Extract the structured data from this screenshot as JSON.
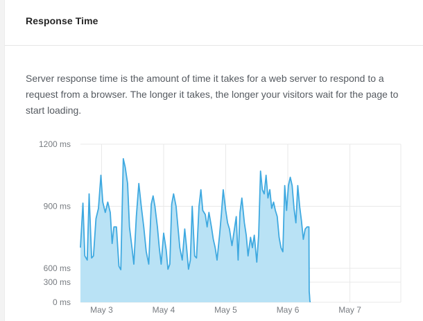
{
  "card": {
    "title": "Response Time",
    "description": "Server response time is the amount of time it takes for a web server to respond to a request from a browser. The longer it takes, the longer your visitors wait for the page to start loading."
  },
  "colors": {
    "line": "#3fa9e0",
    "fill": "#b9e2f5",
    "grid": "#e8e8e8"
  },
  "chart_data": {
    "type": "area",
    "title": "",
    "xlabel": "",
    "ylabel": "",
    "y_ticks": [
      {
        "label": "1200 ms",
        "value": 1200
      },
      {
        "label": "900 ms",
        "value": 900
      },
      {
        "label": "600 ms",
        "value": 600
      },
      {
        "label": "300 ms",
        "value": 300
      },
      {
        "label": "0 ms",
        "value": 0
      }
    ],
    "x_ticks": [
      {
        "label": "May 3",
        "day": 3
      },
      {
        "label": "May 4",
        "day": 4
      },
      {
        "label": "May 5",
        "day": 5
      },
      {
        "label": "May 6",
        "day": 6
      },
      {
        "label": "May 7",
        "day": 7
      }
    ],
    "xlim": [
      2.66,
      7.82
    ],
    "grid": true,
    "legend": "none",
    "series": [
      {
        "values": [
          [
            2.66,
            700
          ],
          [
            2.7,
            915
          ],
          [
            2.73,
            660
          ],
          [
            2.77,
            640
          ],
          [
            2.8,
            960
          ],
          [
            2.84,
            650
          ],
          [
            2.87,
            660
          ],
          [
            2.91,
            840
          ],
          [
            2.95,
            890
          ],
          [
            2.99,
            1050
          ],
          [
            3.02,
            920
          ],
          [
            3.06,
            870
          ],
          [
            3.1,
            920
          ],
          [
            3.14,
            870
          ],
          [
            3.17,
            720
          ],
          [
            3.2,
            800
          ],
          [
            3.24,
            800
          ],
          [
            3.28,
            610
          ],
          [
            3.31,
            570
          ],
          [
            3.35,
            1130
          ],
          [
            3.38,
            1090
          ],
          [
            3.42,
            1010
          ],
          [
            3.45,
            800
          ],
          [
            3.49,
            700
          ],
          [
            3.52,
            620
          ],
          [
            3.56,
            850
          ],
          [
            3.6,
            1010
          ],
          [
            3.64,
            900
          ],
          [
            3.68,
            800
          ],
          [
            3.72,
            680
          ],
          [
            3.76,
            620
          ],
          [
            3.8,
            910
          ],
          [
            3.83,
            950
          ],
          [
            3.86,
            900
          ],
          [
            3.9,
            800
          ],
          [
            3.93,
            700
          ],
          [
            3.96,
            620
          ],
          [
            4.0,
            770
          ],
          [
            4.04,
            690
          ],
          [
            4.07,
            580
          ],
          [
            4.1,
            620
          ],
          [
            4.13,
            910
          ],
          [
            4.16,
            960
          ],
          [
            4.2,
            900
          ],
          [
            4.23,
            800
          ],
          [
            4.26,
            700
          ],
          [
            4.3,
            640
          ],
          [
            4.34,
            790
          ],
          [
            4.37,
            700
          ],
          [
            4.4,
            580
          ],
          [
            4.43,
            640
          ],
          [
            4.46,
            900
          ],
          [
            4.5,
            660
          ],
          [
            4.53,
            650
          ],
          [
            4.57,
            900
          ],
          [
            4.6,
            980
          ],
          [
            4.63,
            880
          ],
          [
            4.67,
            860
          ],
          [
            4.7,
            800
          ],
          [
            4.73,
            870
          ],
          [
            4.77,
            800
          ],
          [
            4.8,
            740
          ],
          [
            4.83,
            700
          ],
          [
            4.86,
            640
          ],
          [
            4.9,
            760
          ],
          [
            4.93,
            860
          ],
          [
            4.96,
            980
          ],
          [
            5.0,
            880
          ],
          [
            5.03,
            820
          ],
          [
            5.06,
            790
          ],
          [
            5.1,
            710
          ],
          [
            5.13,
            770
          ],
          [
            5.17,
            850
          ],
          [
            5.2,
            640
          ],
          [
            5.23,
            870
          ],
          [
            5.26,
            940
          ],
          [
            5.3,
            820
          ],
          [
            5.33,
            760
          ],
          [
            5.36,
            660
          ],
          [
            5.4,
            750
          ],
          [
            5.43,
            700
          ],
          [
            5.46,
            760
          ],
          [
            5.5,
            630
          ],
          [
            5.53,
            760
          ],
          [
            5.56,
            1070
          ],
          [
            5.59,
            980
          ],
          [
            5.62,
            960
          ],
          [
            5.65,
            1050
          ],
          [
            5.68,
            940
          ],
          [
            5.71,
            980
          ],
          [
            5.74,
            890
          ],
          [
            5.77,
            920
          ],
          [
            5.8,
            880
          ],
          [
            5.83,
            850
          ],
          [
            5.86,
            750
          ],
          [
            5.89,
            700
          ],
          [
            5.92,
            680
          ],
          [
            5.95,
            1000
          ],
          [
            5.98,
            880
          ],
          [
            6.01,
            1000
          ],
          [
            6.04,
            1040
          ],
          [
            6.07,
            1000
          ],
          [
            6.1,
            890
          ],
          [
            6.13,
            820
          ],
          [
            6.16,
            1000
          ],
          [
            6.19,
            900
          ],
          [
            6.22,
            830
          ],
          [
            6.25,
            740
          ],
          [
            6.28,
            790
          ],
          [
            6.31,
            800
          ],
          [
            6.34,
            800
          ],
          [
            6.345,
            160
          ],
          [
            6.35,
            100
          ],
          [
            6.355,
            30
          ],
          [
            6.36,
            0
          ]
        ]
      }
    ]
  }
}
